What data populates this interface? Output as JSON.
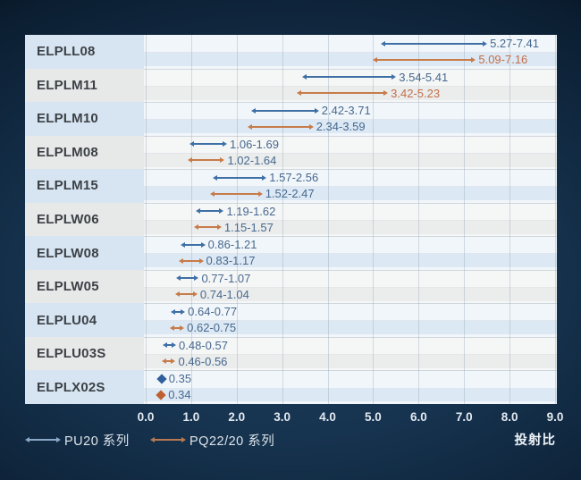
{
  "chart_data": {
    "type": "bar",
    "variant": "horizontal-range-dumbbell",
    "title": "",
    "xlabel": "投射比",
    "xlim": [
      0.0,
      9.0
    ],
    "x_ticks": [
      "0.0",
      "1.0",
      "2.0",
      "3.0",
      "4.0",
      "5.0",
      "6.0",
      "7.0",
      "8.0",
      "9.0"
    ],
    "grid": true,
    "legend_position": "bottom-left",
    "categories": [
      "ELPLL08",
      "ELPLM11",
      "ELPLM10",
      "ELPLM08",
      "ELPLM15",
      "ELPLW06",
      "ELPLW08",
      "ELPLW05",
      "ELPLU04",
      "ELPLU03S",
      "ELPLX02S"
    ],
    "series": [
      {
        "name": "PU20 系列",
        "color": "#3e6fa5",
        "ranges": [
          [
            5.27,
            7.41
          ],
          [
            3.54,
            5.41
          ],
          [
            2.42,
            3.71
          ],
          [
            1.06,
            1.69
          ],
          [
            1.57,
            2.56
          ],
          [
            1.19,
            1.62
          ],
          [
            0.86,
            1.21
          ],
          [
            0.77,
            1.07
          ],
          [
            0.64,
            0.77
          ],
          [
            0.48,
            0.57
          ],
          [
            0.35,
            0.35
          ]
        ],
        "labels": [
          "5.27-7.41",
          "3.54-5.41",
          "2.42-3.71",
          "1.06-1.69",
          "1.57-2.56",
          "1.19-1.62",
          "0.86-1.21",
          "0.77-1.07",
          "0.64-0.77",
          "0.48-0.57",
          "0.35"
        ]
      },
      {
        "name": "PQ22/20 系列",
        "color": "#c77b49",
        "ranges": [
          [
            5.09,
            7.16
          ],
          [
            3.42,
            5.23
          ],
          [
            2.34,
            3.59
          ],
          [
            1.02,
            1.64
          ],
          [
            1.52,
            2.47
          ],
          [
            1.15,
            1.57
          ],
          [
            0.83,
            1.17
          ],
          [
            0.74,
            1.04
          ],
          [
            0.62,
            0.75
          ],
          [
            0.46,
            0.56
          ],
          [
            0.34,
            0.34
          ]
        ],
        "labels": [
          "5.09-7.16",
          "3.42-5.23",
          "2.34-3.59",
          "1.02-1.64",
          "1.52-2.47",
          "1.15-1.57",
          "0.83-1.17",
          "0.74-1.04",
          "0.62-0.75",
          "0.46-0.56",
          "0.34"
        ],
        "label_highlight_rows": [
          0,
          1
        ]
      }
    ]
  },
  "colors": {
    "blue_series": "#3e6fa5",
    "orange_series": "#c77b49",
    "value_text": "#47698f",
    "value_text_highlight": "#c2704a",
    "label_row_blue": "#d7e5f2",
    "label_row_gray": "#e7e8e8",
    "stripe_blue": "#dce8f4",
    "stripe_gray": "#ebecec",
    "plot_bg_blue": "#f1f6fa",
    "plot_bg_gray": "#f5f6f6",
    "axis_text": "#e3eaf1",
    "dark_background": "#16334f"
  }
}
